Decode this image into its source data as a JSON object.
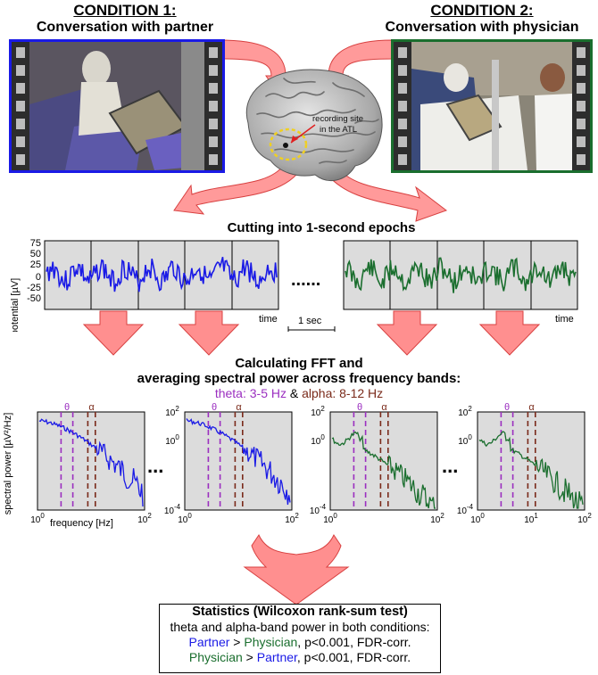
{
  "condition1": {
    "heading": "CONDITION 1:",
    "subheading": "Conversation with partner",
    "color": "#1a1ae6"
  },
  "condition2": {
    "heading": "CONDITION 2:",
    "subheading": "Conversation with physician",
    "color": "#1a6e2e"
  },
  "brain": {
    "label_line1": "recording site",
    "label_line2": "in the ATL"
  },
  "epochs": {
    "title": "Cutting into 1-second epochs",
    "ylabel": "potential [µV]",
    "yticks": [
      "75",
      "50",
      "25",
      "0",
      "-25",
      "-50"
    ],
    "xlabel": "time",
    "ellipsis": "......",
    "scalebar": "1 sec"
  },
  "fft": {
    "title_line1": "Calculating FFT and",
    "title_line2": "averaging spectral power across frequency bands:",
    "theta_text": "theta: 3-5 Hz",
    "amp": "&",
    "alpha_text": "alpha: 8-12 Hz",
    "theta_color": "#9b2fc0",
    "alpha_color": "#7a2a1a"
  },
  "spectra": {
    "ylabel": "spectral power [µV²/Hz]",
    "xlabel": "frequency [Hz]",
    "theta_symbol": "θ",
    "alpha_symbol": "α",
    "ellipsis": "...",
    "ytick_top": "10",
    "ytick_top_exp": "2",
    "ytick_mid": "10",
    "ytick_mid_exp": "0",
    "ytick_bot": "10",
    "ytick_bot_exp": "-4",
    "xtick1": "10",
    "xtick1_exp": "0",
    "xtick2": "10",
    "xtick2_exp": "1",
    "xtick3": "10",
    "xtick3_exp": "2"
  },
  "stats": {
    "title": "Statistics (Wilcoxon rank-sum test)",
    "line1": "theta and alpha-band power in both conditions:",
    "line2_a": "Partner",
    "line2_b": " > ",
    "line2_c": "Physician",
    "line2_d": ", p<0.001, FDR-corr.",
    "line3_a": "Physician",
    "line3_b": " > ",
    "line3_c": "Partner",
    "line3_d": ", p<0.001, FDR-corr."
  }
}
